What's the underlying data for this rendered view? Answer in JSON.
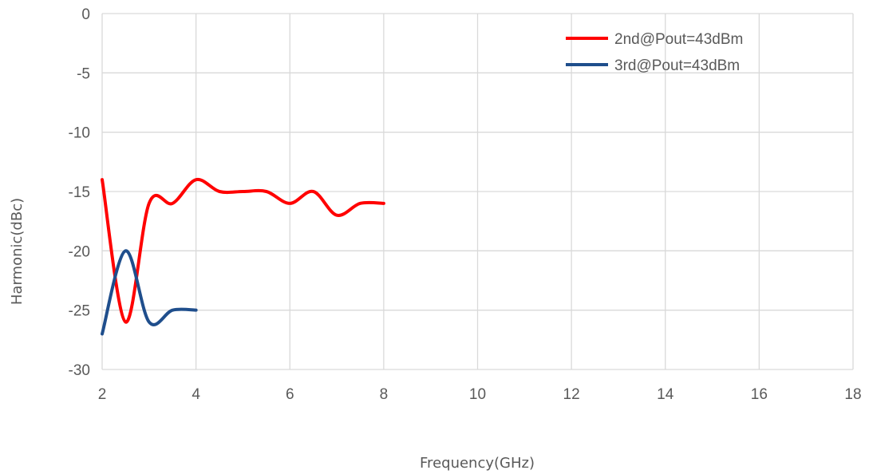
{
  "chart_data": {
    "type": "line",
    "title": "",
    "xlabel": "Frequency(GHz)",
    "ylabel": "Harmonic(dBc)",
    "xlim": [
      2,
      18
    ],
    "ylim": [
      -30,
      0
    ],
    "xticks": [
      2,
      4,
      6,
      8,
      10,
      12,
      14,
      16,
      18
    ],
    "yticks": [
      0,
      -5,
      -10,
      -15,
      -20,
      -25,
      -30
    ],
    "grid": true,
    "legend_position": "top-right",
    "series": [
      {
        "name": "2nd@Pout=43dBm",
        "color": "#ff0000",
        "x": [
          2,
          2.5,
          3,
          3.5,
          4,
          4.5,
          5,
          5.5,
          6,
          6.5,
          7,
          7.5,
          8
        ],
        "y": [
          -14,
          -26,
          -16,
          -16,
          -14,
          -15,
          -15,
          -15,
          -16,
          -15,
          -17,
          -16,
          -16
        ]
      },
      {
        "name": "3rd@Pout=43dBm",
        "color": "#1f4e8c",
        "x": [
          2,
          2.5,
          3,
          3.5,
          4
        ],
        "y": [
          -27,
          -20,
          -26,
          -25,
          -25
        ]
      }
    ]
  }
}
